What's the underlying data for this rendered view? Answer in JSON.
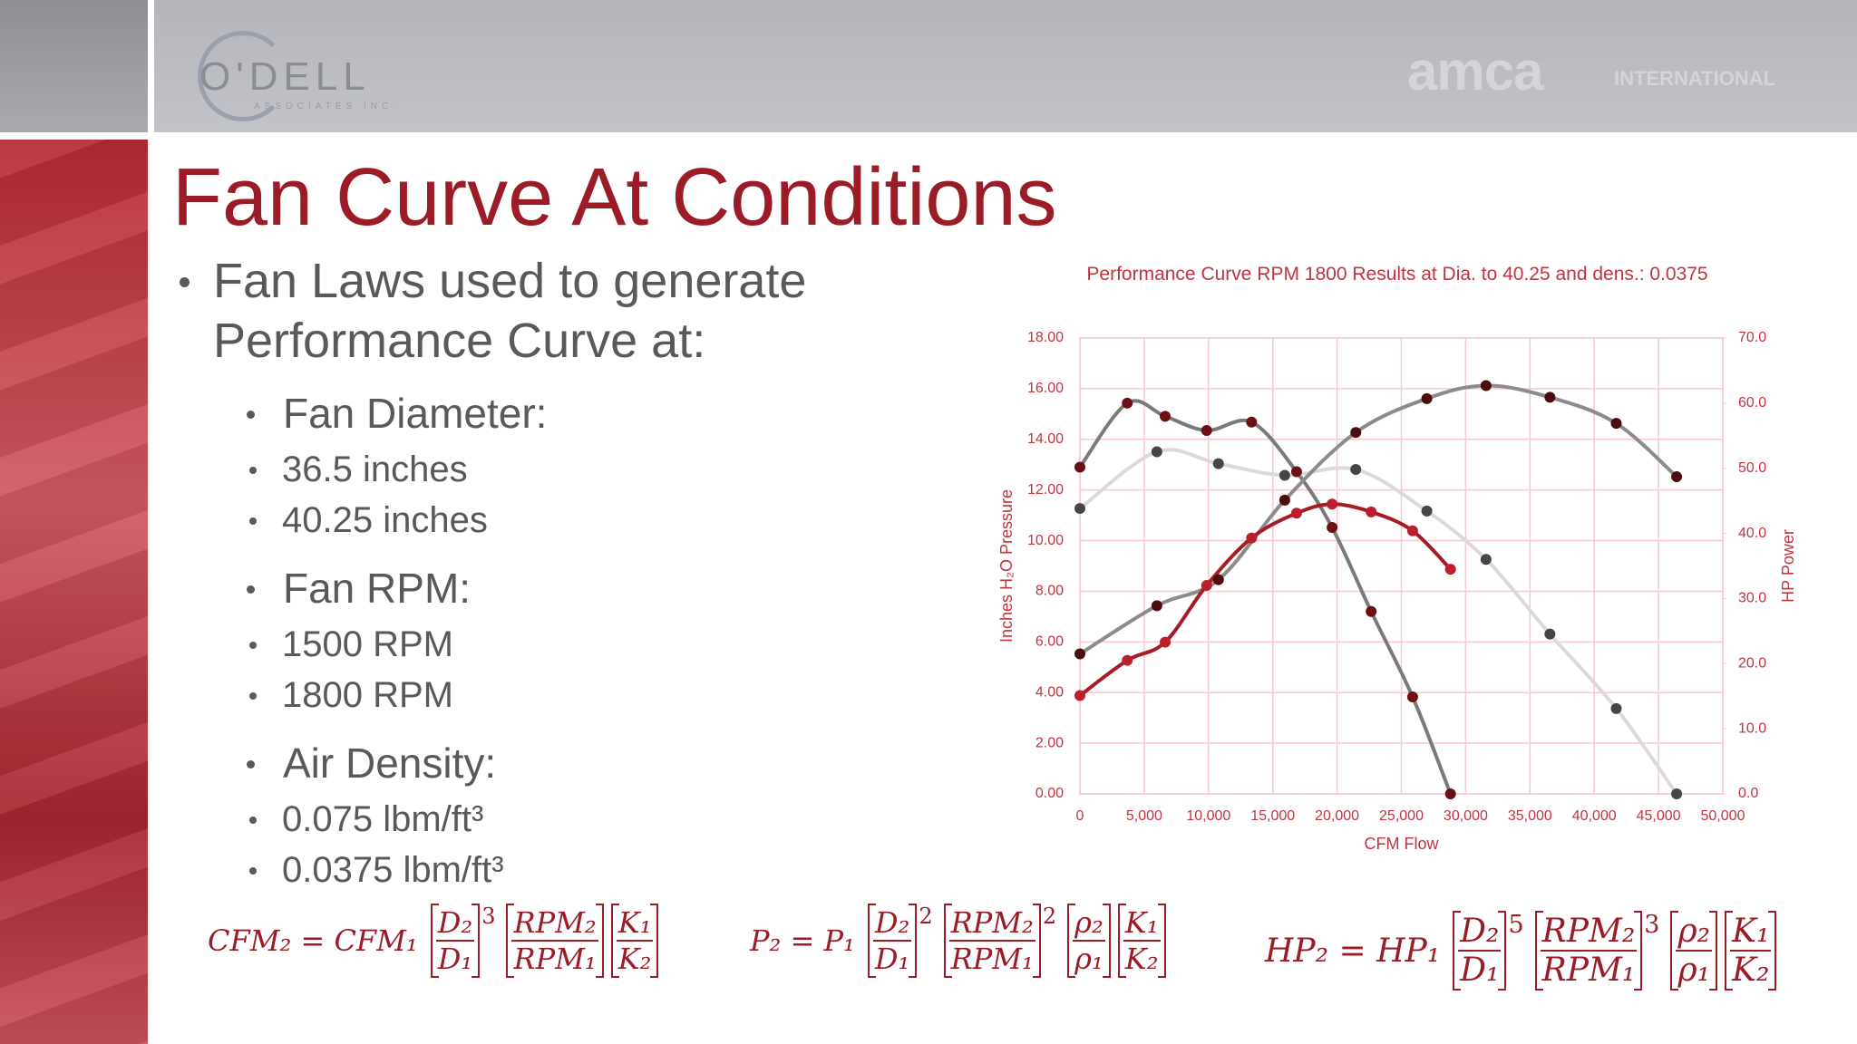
{
  "header": {
    "logo_left": "O'DELL",
    "logo_left_sub": "ASSOCIATES INC.",
    "logo_right": "amca",
    "logo_right_sub": "INTERNATIONAL"
  },
  "slide": {
    "title": "Fan Curve At Conditions",
    "bullets": [
      {
        "text": "Fan Laws used to generate Performance Curve at:",
        "children": [
          {
            "text": "Fan Diameter:",
            "children": [
              {
                "text": "36.5 inches"
              },
              {
                "text": "40.25 inches"
              }
            ]
          },
          {
            "text": "Fan RPM:",
            "children": [
              {
                "text": "1500 RPM"
              },
              {
                "text": "1800 RPM"
              }
            ]
          },
          {
            "text": "Air Density:",
            "children": [
              {
                "text": "0.075 lbm/ft³"
              },
              {
                "text": "0.0375 lbm/ft³"
              }
            ]
          }
        ]
      }
    ]
  },
  "formulas": [
    {
      "lhs": "CFM₂ = CFM₁",
      "factors": [
        {
          "num": "D₂",
          "den": "D₁",
          "exp": 3
        },
        {
          "num": "RPM₂",
          "den": "RPM₁"
        },
        {
          "num": "K₁",
          "den": "K₂"
        }
      ]
    },
    {
      "lhs": "P₂ = P₁",
      "factors": [
        {
          "num": "D₂",
          "den": "D₁",
          "exp": 2
        },
        {
          "num": "RPM₂",
          "den": "RPM₁",
          "exp": 2
        },
        {
          "num": "ρ₂",
          "den": "ρ₁"
        },
        {
          "num": "K₁",
          "den": "K₂"
        }
      ]
    },
    {
      "lhs": "HP₂ = HP₁",
      "factors": [
        {
          "num": "D₂",
          "den": "D₁",
          "exp": 5
        },
        {
          "num": "RPM₂",
          "den": "RPM₁",
          "exp": 3
        },
        {
          "num": "ρ₂",
          "den": "ρ₁"
        },
        {
          "num": "K₁",
          "den": "K₂"
        }
      ]
    }
  ],
  "chart_data": {
    "type": "line",
    "title": "Performance Curve RPM 1800 Results at Dia. to 40.25 and  dens.: 0.0375",
    "xlabel": "CFM Flow",
    "ylabel": "Inches H₂O Pressure",
    "y2label": "HP Power",
    "xlim": [
      0,
      50000
    ],
    "xticks": [
      0,
      {
        "value": 5000,
        "label": "5,000"
      },
      {
        "value": 10000,
        "label": "10,000"
      },
      {
        "value": 15000,
        "label": "15,000"
      },
      {
        "value": 20000,
        "label": "20,000"
      },
      {
        "value": 25000,
        "label": "25,000"
      },
      {
        "value": 30000,
        "label": "30,000"
      },
      {
        "value": 35000,
        "label": "35,000"
      },
      {
        "value": 40000,
        "label": "40,000"
      },
      {
        "value": 45000,
        "label": "45,000"
      },
      {
        "value": 50000,
        "label": "50,000"
      }
    ],
    "ylim": [
      0,
      18
    ],
    "yticks": [
      {
        "value": 0,
        "label": "0.00"
      },
      {
        "value": 2,
        "label": "2.00"
      },
      {
        "value": 4,
        "label": "4.00"
      },
      {
        "value": 6,
        "label": "6.00"
      },
      {
        "value": 8,
        "label": "8.00"
      },
      {
        "value": 10,
        "label": "10.00"
      },
      {
        "value": 12,
        "label": "12.00"
      },
      {
        "value": 14,
        "label": "14.00"
      },
      {
        "value": 16,
        "label": "16.00"
      },
      {
        "value": 18,
        "label": "18.00"
      }
    ],
    "y2lim": [
      0,
      70
    ],
    "y2ticks": [
      {
        "value": 0,
        "label": "0.0"
      },
      {
        "value": 10,
        "label": "10.0"
      },
      {
        "value": 20,
        "label": "20.0"
      },
      {
        "value": 30,
        "label": "30.0"
      },
      {
        "value": 40,
        "label": "40.0"
      },
      {
        "value": 50,
        "label": "50.0"
      },
      {
        "value": 60,
        "label": "60.0"
      },
      {
        "value": 70,
        "label": "70.0"
      }
    ],
    "grid": true,
    "grid_color": "#f5c9d1",
    "series": [
      {
        "color": "#7a7a7a",
        "marker_color": "#6b1014",
        "x": [
          0,
          3683,
          6630,
          9853,
          13352,
          16851,
          19613,
          22652,
          25875,
          28821
        ],
        "values": [
          12.9,
          15.43,
          14.91,
          14.35,
          14.68,
          12.72,
          10.52,
          7.2,
          3.83,
          0
        ]
      },
      {
        "color": "#dadada",
        "marker_color": "#454545",
        "x": [
          0,
          5985,
          10773,
          15930,
          21455,
          26980,
          31584,
          36556,
          41713,
          46409
        ],
        "values": [
          11.27,
          13.51,
          13.04,
          12.58,
          12.81,
          11.17,
          9.26,
          6.31,
          3.37,
          0
        ]
      },
      {
        "color": "#8c8c8c",
        "marker_color": "#4a0c0e",
        "axis": "y2",
        "x": [
          0,
          5985,
          10773,
          15930,
          21455,
          26980,
          31584,
          36556,
          41713,
          46409
        ],
        "values": [
          21.5,
          28.9,
          32.9,
          45.1,
          55.5,
          60.7,
          62.7,
          60.9,
          56.9,
          48.7
        ]
      },
      {
        "color": "#a51c24",
        "marker_color": "#bd1e2c",
        "axis": "y2",
        "x": [
          0,
          3683,
          6630,
          9853,
          13352,
          16851,
          19613,
          22652,
          25875,
          28821
        ],
        "values": [
          15.1,
          20.5,
          23.3,
          32.0,
          39.3,
          43.1,
          44.5,
          43.3,
          40.4,
          34.5
        ]
      }
    ]
  }
}
